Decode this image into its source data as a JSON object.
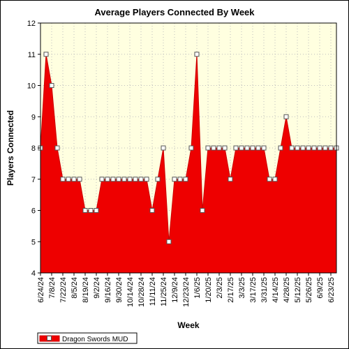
{
  "chart_data": {
    "type": "area",
    "title": "Average Players Connected By Week",
    "xlabel": "Week",
    "ylabel": "Players Connected",
    "ylim": [
      4,
      12
    ],
    "yticks": [
      4,
      5,
      6,
      7,
      8,
      9,
      10,
      11,
      12
    ],
    "x_tick_labels": [
      "6/24/24",
      "7/8/24",
      "7/22/24",
      "8/5/24",
      "8/19/24",
      "9/2/24",
      "9/16/24",
      "9/30/24",
      "10/14/24",
      "10/28/24",
      "11/11/24",
      "11/25/24",
      "12/9/24",
      "12/23/24",
      "1/6/25",
      "1/20/25",
      "2/3/25",
      "2/17/25",
      "3/3/25",
      "3/17/25",
      "3/31/25",
      "4/14/25",
      "4/28/25",
      "5/12/25",
      "5/26/25",
      "6/9/25",
      "6/23/25"
    ],
    "grid": true,
    "legend_position": "bottom-left",
    "colors": {
      "fill": "#ee0000",
      "line": "#cc0000",
      "marker_fill": "#ffffff",
      "plot_bg": "#ffffe0",
      "grid": "#bdbdbd"
    },
    "series": [
      {
        "name": "Dragon Swords MUD",
        "values": [
          8,
          11,
          10,
          8,
          7,
          7,
          7,
          7,
          6,
          6,
          6,
          7,
          7,
          7,
          7,
          7,
          7,
          7,
          7,
          7,
          6,
          7,
          8,
          5,
          7,
          7,
          7,
          8,
          11,
          6,
          8,
          8,
          8,
          8,
          7,
          8,
          8,
          8,
          8,
          8,
          8,
          7,
          7,
          8,
          9,
          8,
          8,
          8,
          8,
          8,
          8,
          8,
          8,
          8
        ]
      }
    ]
  }
}
